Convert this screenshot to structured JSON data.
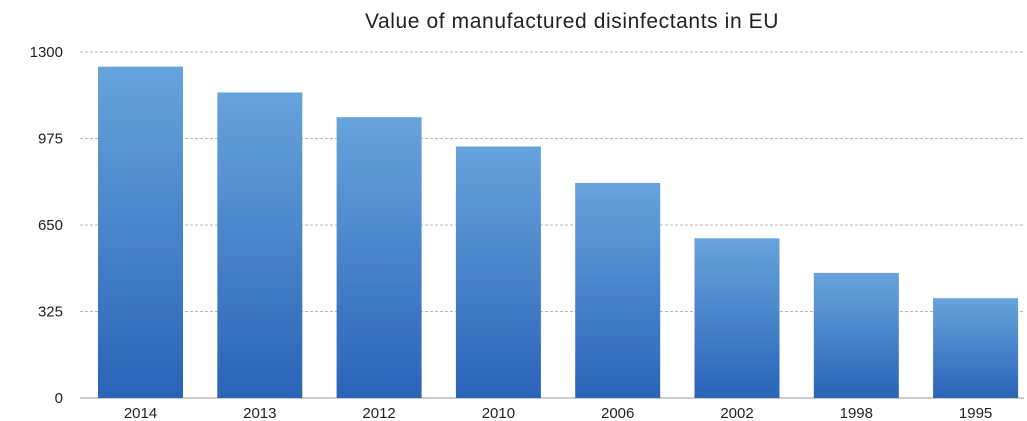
{
  "chart_data": {
    "type": "bar",
    "title": "Value of manufactured disinfectants in EU",
    "xlabel": "",
    "ylabel": "",
    "categories": [
      "2014",
      "2013",
      "2012",
      "2010",
      "2006",
      "2002",
      "1998",
      "1995"
    ],
    "values": [
      1245,
      1148,
      1055,
      945,
      808,
      600,
      470,
      375
    ],
    "ylim": [
      0,
      1300
    ],
    "yticks": [
      0,
      325,
      650,
      975,
      1300
    ],
    "ytick_labels": [
      "0",
      "325",
      "650",
      "975",
      "1300"
    ],
    "grid": true,
    "legend": "none",
    "colors": {
      "bar_top": "#67a3dc",
      "bar_bottom": "#2b63b8",
      "grid": "#b8b8b8",
      "text": "#222222"
    }
  }
}
